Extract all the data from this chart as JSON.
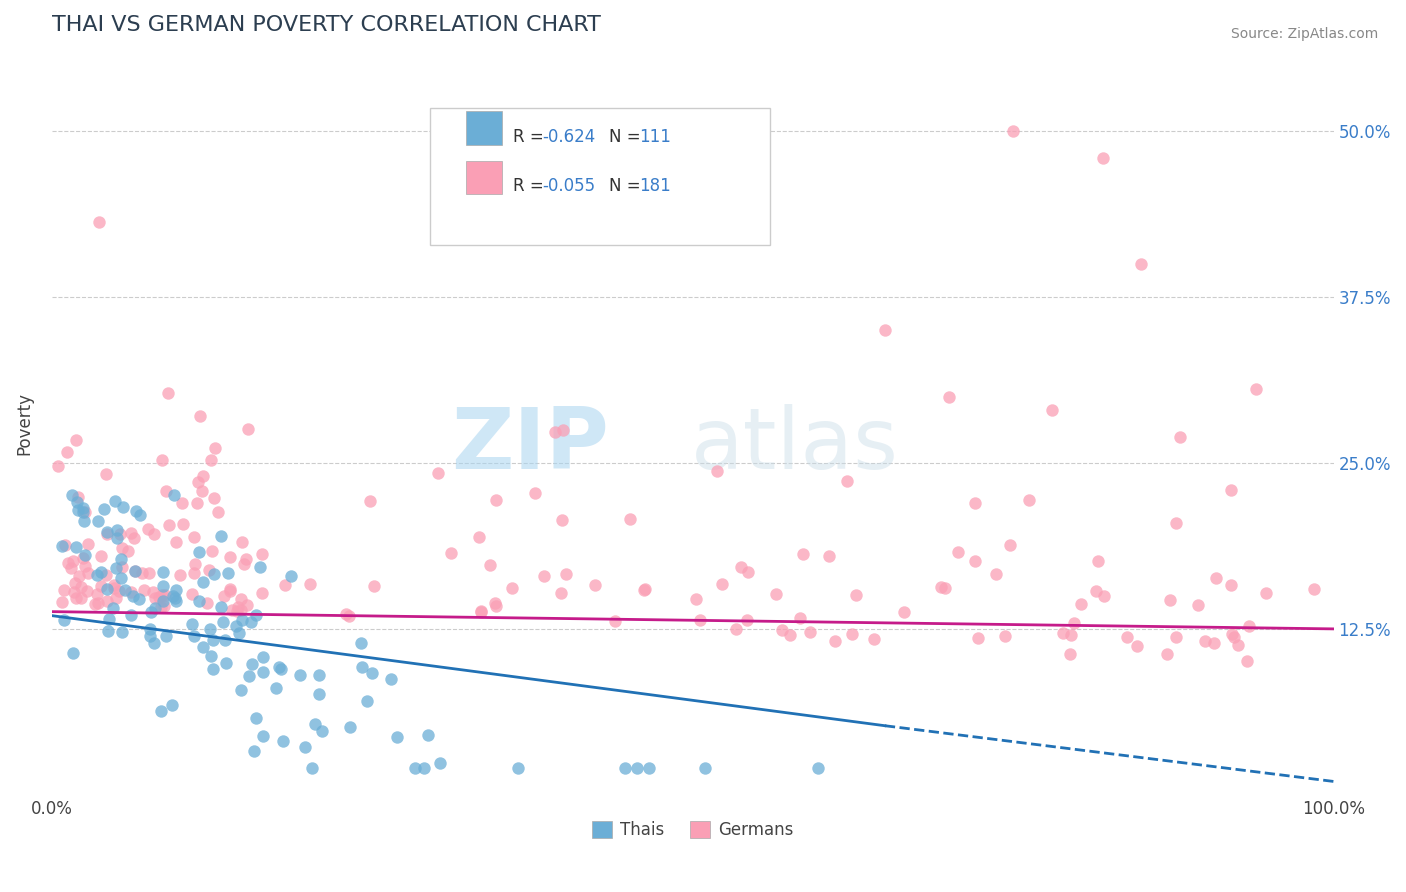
{
  "title": "THAI VS GERMAN POVERTY CORRELATION CHART",
  "source_text": "Source: ZipAtlas.com",
  "xlabel": "",
  "ylabel": "Poverty",
  "xlim": [
    0,
    1.0
  ],
  "ylim": [
    0,
    0.56
  ],
  "xtick_labels": [
    "0.0%",
    "100.0%"
  ],
  "ytick_labels": [
    "12.5%",
    "25.0%",
    "37.5%",
    "50.0%"
  ],
  "ytick_vals": [
    0.125,
    0.25,
    0.375,
    0.5
  ],
  "hline_vals": [
    0.125,
    0.25,
    0.375,
    0.5
  ],
  "thai_color": "#6baed6",
  "german_color": "#fa9fb5",
  "thai_line_color": "#2171b5",
  "german_line_color": "#c51b8a",
  "bottom_legend_thai": "Thais",
  "bottom_legend_german": "Germans",
  "watermark_zip": "ZIP",
  "watermark_atlas": "atlas",
  "thai_N": 111,
  "german_N": 181,
  "background_color": "#ffffff",
  "grid_color": "#cccccc",
  "title_color": "#2c3e50",
  "source_color": "#888888",
  "label_color": "#3a7dc9"
}
